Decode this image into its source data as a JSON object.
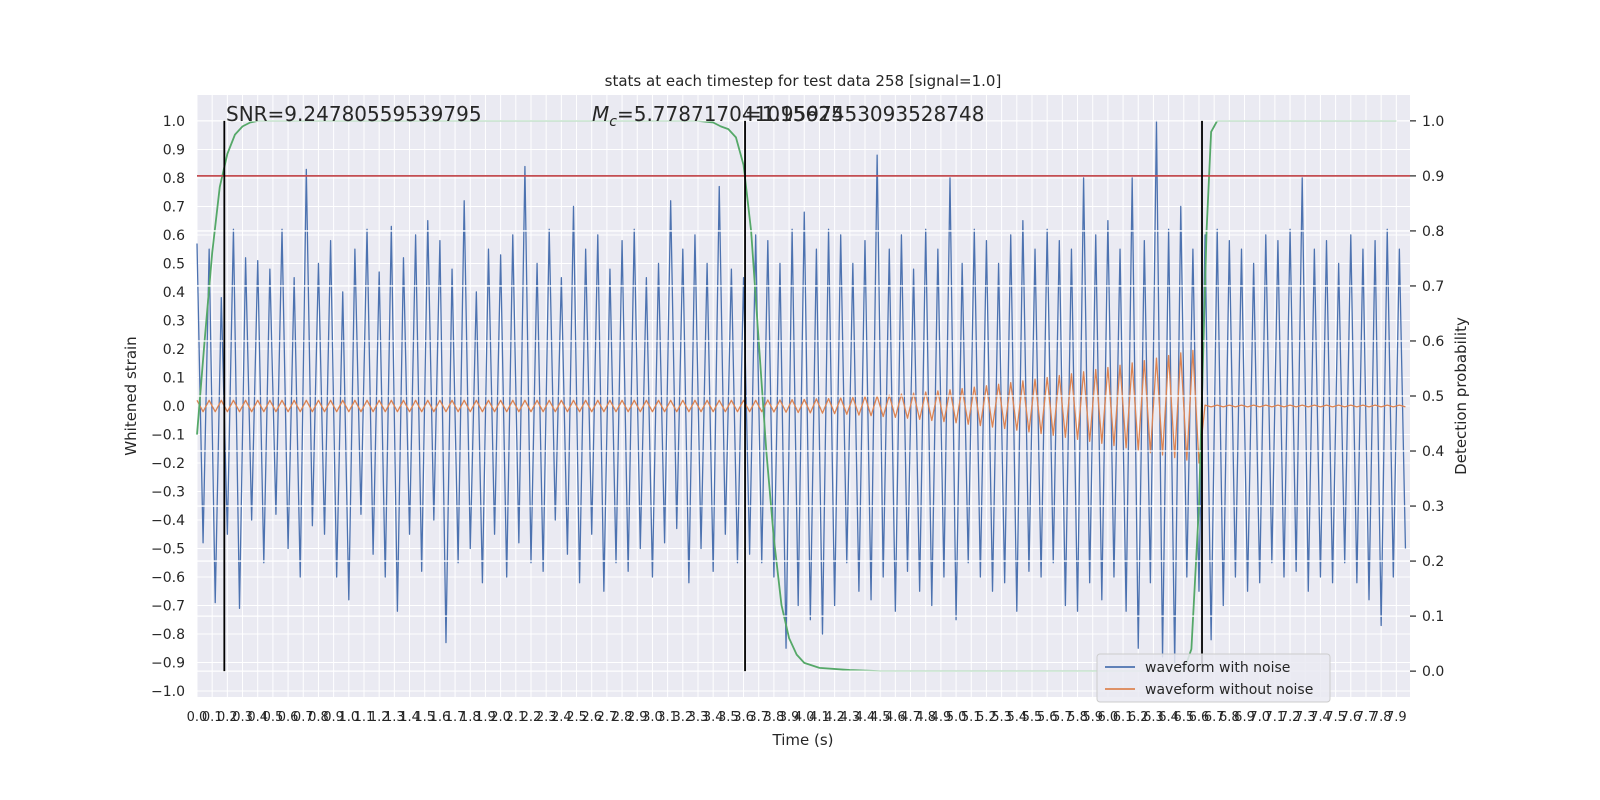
{
  "chart_data": {
    "type": "line",
    "title": "stats at each timestep for test data 258 [signal=1.0]",
    "x_label": "Time (s)",
    "y_label": "Whitened strain",
    "y2_label": "Detection probability",
    "grid": true,
    "legend": "lower right",
    "annotations": {
      "snr": "SNR=9.24780559539795",
      "mc_symbol": "M",
      "mc_subscript": "c",
      "mc_value": "=5.778717041015625",
      "second_value": "=1.9597453093528748"
    },
    "xlim": [
      0,
      7.99
    ],
    "ylim": [
      -1.021,
      1.091
    ],
    "y2lim": [
      -0.047,
      1.047
    ],
    "xticks": [
      {
        "value": 0,
        "label": "0.0"
      },
      {
        "value": 0.1,
        "label": "0.1"
      },
      {
        "value": 0.2,
        "label": "0.2"
      },
      {
        "value": 0.3,
        "label": "0.3"
      },
      {
        "value": 0.4,
        "label": "0.4"
      },
      {
        "value": 0.5,
        "label": "0.5"
      },
      {
        "value": 0.6,
        "label": "0.6"
      },
      {
        "value": 0.7,
        "label": "0.7"
      },
      {
        "value": 0.8,
        "label": "0.8"
      },
      {
        "value": 0.9,
        "label": "0.9"
      },
      {
        "value": 1,
        "label": "1.0"
      },
      {
        "value": 1.1,
        "label": "1.1"
      },
      {
        "value": 1.2,
        "label": "1.2"
      },
      {
        "value": 1.3,
        "label": "1.3"
      },
      {
        "value": 1.4,
        "label": "1.4"
      },
      {
        "value": 1.5,
        "label": "1.5"
      },
      {
        "value": 1.6,
        "label": "1.6"
      },
      {
        "value": 1.7,
        "label": "1.7"
      },
      {
        "value": 1.8,
        "label": "1.8"
      },
      {
        "value": 1.9,
        "label": "1.9"
      },
      {
        "value": 2,
        "label": "2.0"
      },
      {
        "value": 2.1,
        "label": "2.1"
      },
      {
        "value": 2.2,
        "label": "2.2"
      },
      {
        "value": 2.3,
        "label": "2.3"
      },
      {
        "value": 2.4,
        "label": "2.4"
      },
      {
        "value": 2.5,
        "label": "2.5"
      },
      {
        "value": 2.6,
        "label": "2.6"
      },
      {
        "value": 2.7,
        "label": "2.7"
      },
      {
        "value": 2.8,
        "label": "2.8"
      },
      {
        "value": 2.9,
        "label": "2.9"
      },
      {
        "value": 3,
        "label": "3.0"
      },
      {
        "value": 3.1,
        "label": "3.1"
      },
      {
        "value": 3.2,
        "label": "3.2"
      },
      {
        "value": 3.3,
        "label": "3.3"
      },
      {
        "value": 3.4,
        "label": "3.4"
      },
      {
        "value": 3.5,
        "label": "3.5"
      },
      {
        "value": 3.6,
        "label": "3.6"
      },
      {
        "value": 3.7,
        "label": "3.7"
      },
      {
        "value": 3.8,
        "label": "3.8"
      },
      {
        "value": 3.9,
        "label": "3.9"
      },
      {
        "value": 4,
        "label": "4.0"
      },
      {
        "value": 4.1,
        "label": "4.1"
      },
      {
        "value": 4.2,
        "label": "4.2"
      },
      {
        "value": 4.3,
        "label": "4.3"
      },
      {
        "value": 4.4,
        "label": "4.4"
      },
      {
        "value": 4.5,
        "label": "4.5"
      },
      {
        "value": 4.6,
        "label": "4.6"
      },
      {
        "value": 4.7,
        "label": "4.7"
      },
      {
        "value": 4.8,
        "label": "4.8"
      },
      {
        "value": 4.9,
        "label": "4.9"
      },
      {
        "value": 5,
        "label": "5.0"
      },
      {
        "value": 5.1,
        "label": "5.1"
      },
      {
        "value": 5.2,
        "label": "5.2"
      },
      {
        "value": 5.3,
        "label": "5.3"
      },
      {
        "value": 5.4,
        "label": "5.4"
      },
      {
        "value": 5.5,
        "label": "5.5"
      },
      {
        "value": 5.6,
        "label": "5.6"
      },
      {
        "value": 5.7,
        "label": "5.7"
      },
      {
        "value": 5.8,
        "label": "5.8"
      },
      {
        "value": 5.9,
        "label": "5.9"
      },
      {
        "value": 6,
        "label": "6.0"
      },
      {
        "value": 6.1,
        "label": "6.1"
      },
      {
        "value": 6.2,
        "label": "6.2"
      },
      {
        "value": 6.3,
        "label": "6.3"
      },
      {
        "value": 6.4,
        "label": "6.4"
      },
      {
        "value": 6.5,
        "label": "6.5"
      },
      {
        "value": 6.6,
        "label": "6.6"
      },
      {
        "value": 6.7,
        "label": "6.7"
      },
      {
        "value": 6.8,
        "label": "6.8"
      },
      {
        "value": 6.9,
        "label": "6.9"
      },
      {
        "value": 7,
        "label": "7.0"
      },
      {
        "value": 7.1,
        "label": "7.1"
      },
      {
        "value": 7.2,
        "label": "7.2"
      },
      {
        "value": 7.3,
        "label": "7.3"
      },
      {
        "value": 7.4,
        "label": "7.4"
      },
      {
        "value": 7.5,
        "label": "7.5"
      },
      {
        "value": 7.6,
        "label": "7.6"
      },
      {
        "value": 7.7,
        "label": "7.7"
      },
      {
        "value": 7.8,
        "label": "7.8"
      },
      {
        "value": 7.9,
        "label": "7.9"
      }
    ],
    "yticks": [
      {
        "value": -1,
        "label": "−1.0"
      },
      {
        "value": -0.9,
        "label": "−0.9"
      },
      {
        "value": -0.8,
        "label": "−0.8"
      },
      {
        "value": -0.7,
        "label": "−0.7"
      },
      {
        "value": -0.6,
        "label": "−0.6"
      },
      {
        "value": -0.5,
        "label": "−0.5"
      },
      {
        "value": -0.4,
        "label": "−0.4"
      },
      {
        "value": -0.3,
        "label": "−0.3"
      },
      {
        "value": -0.2,
        "label": "−0.2"
      },
      {
        "value": -0.1,
        "label": "−0.1"
      },
      {
        "value": 0,
        "label": "0.0"
      },
      {
        "value": 0.1,
        "label": "0.1"
      },
      {
        "value": 0.2,
        "label": "0.2"
      },
      {
        "value": 0.3,
        "label": "0.3"
      },
      {
        "value": 0.4,
        "label": "0.4"
      },
      {
        "value": 0.5,
        "label": "0.5"
      },
      {
        "value": 0.6,
        "label": "0.6"
      },
      {
        "value": 0.7,
        "label": "0.7"
      },
      {
        "value": 0.8,
        "label": "0.8"
      },
      {
        "value": 0.9,
        "label": "0.9"
      },
      {
        "value": 1,
        "label": "1.0"
      }
    ],
    "y2ticks": [
      {
        "value": 0,
        "label": "0.0"
      },
      {
        "value": 0.1,
        "label": "0.1"
      },
      {
        "value": 0.2,
        "label": "0.2"
      },
      {
        "value": 0.3,
        "label": "0.3"
      },
      {
        "value": 0.4,
        "label": "0.4"
      },
      {
        "value": 0.5,
        "label": "0.5"
      },
      {
        "value": 0.6,
        "label": "0.6"
      },
      {
        "value": 0.7,
        "label": "0.7"
      },
      {
        "value": 0.8,
        "label": "0.8"
      },
      {
        "value": 0.9,
        "label": "0.9"
      },
      {
        "value": 1,
        "label": "1.0"
      }
    ],
    "x": [
      0,
      0.04,
      0.08,
      0.12,
      0.16,
      0.2,
      0.24,
      0.28,
      0.32,
      0.36,
      0.4,
      0.44,
      0.48,
      0.52,
      0.56,
      0.6,
      0.64,
      0.68,
      0.72,
      0.76,
      0.8,
      0.84,
      0.88,
      0.92,
      0.96,
      1,
      1.04,
      1.08,
      1.12,
      1.16,
      1.2,
      1.24,
      1.28,
      1.32,
      1.36,
      1.4,
      1.44,
      1.48,
      1.52,
      1.56,
      1.6,
      1.64,
      1.68,
      1.72,
      1.76,
      1.8,
      1.84,
      1.88,
      1.92,
      1.96,
      2,
      2.04,
      2.08,
      2.12,
      2.16,
      2.2,
      2.24,
      2.28,
      2.32,
      2.36,
      2.4,
      2.44,
      2.48,
      2.52,
      2.56,
      2.6,
      2.64,
      2.68,
      2.72,
      2.76,
      2.8,
      2.84,
      2.88,
      2.92,
      2.96,
      3,
      3.04,
      3.08,
      3.12,
      3.16,
      3.2,
      3.24,
      3.28,
      3.32,
      3.36,
      3.4,
      3.44,
      3.48,
      3.52,
      3.56,
      3.6,
      3.64,
      3.68,
      3.72,
      3.76,
      3.8,
      3.84,
      3.88,
      3.92,
      3.96,
      4,
      4.04,
      4.08,
      4.12,
      4.16,
      4.2,
      4.24,
      4.28,
      4.32,
      4.36,
      4.4,
      4.44,
      4.48,
      4.52,
      4.56,
      4.6,
      4.64,
      4.68,
      4.72,
      4.76,
      4.8,
      4.84,
      4.88,
      4.92,
      4.96,
      5,
      5.04,
      5.08,
      5.12,
      5.16,
      5.2,
      5.24,
      5.28,
      5.32,
      5.36,
      5.4,
      5.44,
      5.48,
      5.52,
      5.56,
      5.6,
      5.64,
      5.68,
      5.72,
      5.76,
      5.8,
      5.84,
      5.88,
      5.92,
      5.96,
      6,
      6.04,
      6.08,
      6.12,
      6.16,
      6.2,
      6.24,
      6.28,
      6.32,
      6.36,
      6.4,
      6.44,
      6.48,
      6.52,
      6.56,
      6.6,
      6.64,
      6.68,
      6.72,
      6.76,
      6.8,
      6.84,
      6.88,
      6.92,
      6.96,
      7,
      7.04,
      7.08,
      7.12,
      7.16,
      7.2,
      7.24,
      7.28,
      7.32,
      7.36,
      7.4,
      7.44,
      7.48,
      7.52,
      7.56,
      7.6,
      7.64,
      7.68,
      7.72,
      7.76,
      7.8,
      7.84,
      7.88,
      7.92,
      7.96
    ],
    "series": [
      {
        "name": "waveform with noise",
        "color": "#4c72b0",
        "values": [
          0.57,
          -0.48,
          0.55,
          -0.69,
          0.38,
          -0.45,
          0.62,
          -0.71,
          0.52,
          -0.4,
          0.51,
          -0.55,
          0.48,
          -0.38,
          0.62,
          -0.5,
          0.45,
          -0.6,
          0.83,
          -0.42,
          0.5,
          -0.45,
          0.58,
          -0.6,
          0.4,
          -0.68,
          0.55,
          -0.38,
          0.62,
          -0.52,
          0.47,
          -0.6,
          0.63,
          -0.72,
          0.52,
          -0.45,
          0.6,
          -0.58,
          0.65,
          -0.4,
          0.58,
          -0.83,
          0.48,
          -0.55,
          0.72,
          -0.5,
          0.4,
          -0.62,
          0.55,
          -0.45,
          0.53,
          -0.6,
          0.6,
          -0.48,
          0.84,
          -0.55,
          0.5,
          -0.58,
          0.62,
          -0.4,
          0.45,
          -0.52,
          0.7,
          -0.62,
          0.55,
          -0.45,
          0.6,
          -0.65,
          0.48,
          -0.55,
          0.58,
          -0.58,
          0.62,
          -0.5,
          0.45,
          -0.6,
          0.5,
          -0.48,
          0.72,
          -0.43,
          0.55,
          -0.62,
          0.6,
          -0.5,
          0.5,
          -0.58,
          0.77,
          -0.45,
          0.48,
          -0.55,
          0.45,
          -0.52,
          0.6,
          -0.55,
          0.58,
          -0.6,
          0.5,
          -0.85,
          0.62,
          -0.7,
          0.68,
          -0.75,
          0.55,
          -0.8,
          0.62,
          -0.7,
          0.6,
          -0.55,
          0.5,
          -0.65,
          0.58,
          -0.68,
          0.88,
          -0.6,
          0.55,
          -0.72,
          0.6,
          -0.58,
          0.48,
          -0.65,
          0.62,
          -0.7,
          0.55,
          -0.6,
          0.8,
          -0.75,
          0.5,
          -0.55,
          0.62,
          -0.6,
          0.58,
          -0.65,
          0.5,
          -0.62,
          0.6,
          -0.72,
          0.65,
          -0.58,
          0.55,
          -0.6,
          0.62,
          -0.55,
          0.58,
          -0.7,
          0.55,
          -0.72,
          0.8,
          -0.62,
          0.6,
          -0.68,
          0.65,
          -0.6,
          0.55,
          -0.72,
          0.8,
          -0.85,
          0.58,
          -0.62,
          1.0,
          -0.88,
          0.62,
          -0.9,
          0.7,
          -0.6,
          0.55,
          -0.65,
          0.6,
          -0.82,
          0.62,
          -0.7,
          0.58,
          -0.6,
          0.55,
          -0.65,
          0.5,
          -0.62,
          0.6,
          -0.55,
          0.58,
          -0.6,
          0.62,
          -0.58,
          0.8,
          -0.65,
          0.55,
          -0.6,
          0.58,
          -0.62,
          0.5,
          -0.55,
          0.6,
          -0.62,
          0.55,
          -0.68,
          0.58,
          -0.77,
          0.62,
          -0.6,
          0.55,
          -0.5
        ]
      },
      {
        "name": "waveform without noise",
        "color": "#dd8452",
        "values": [
          0.02,
          -0.02,
          0.02,
          -0.02,
          0.02,
          -0.02,
          0.02,
          -0.02,
          0.02,
          -0.02,
          0.02,
          -0.02,
          0.02,
          -0.02,
          0.02,
          -0.02,
          0.02,
          -0.02,
          0.02,
          -0.02,
          0.02,
          -0.02,
          0.02,
          -0.02,
          0.02,
          -0.02,
          0.02,
          -0.02,
          0.02,
          -0.02,
          0.02,
          -0.02,
          0.02,
          -0.02,
          0.02,
          -0.02,
          0.02,
          -0.02,
          0.02,
          -0.02,
          0.02,
          -0.02,
          0.02,
          -0.02,
          0.02,
          -0.02,
          0.02,
          -0.02,
          0.02,
          -0.02,
          0.02,
          -0.02,
          0.02,
          -0.02,
          0.02,
          -0.02,
          0.02,
          -0.02,
          0.02,
          -0.02,
          0.02,
          -0.02,
          0.02,
          -0.02,
          0.02,
          -0.02,
          0.02,
          -0.02,
          0.02,
          -0.02,
          0.02,
          -0.02,
          0.02,
          -0.02,
          0.02,
          -0.02,
          0.02,
          -0.02,
          0.02,
          -0.02,
          0.02,
          -0.02,
          0.02,
          -0.02,
          0.02,
          -0.02,
          0.02,
          -0.02,
          0.02,
          -0.02,
          0.02,
          -0.02,
          0.02,
          -0.02,
          0.021,
          -0.021,
          0.021,
          -0.022,
          0.022,
          -0.023,
          0.023,
          -0.024,
          0.025,
          -0.025,
          0.026,
          -0.027,
          0.028,
          -0.029,
          0.03,
          -0.032,
          0.033,
          -0.034,
          0.035,
          -0.037,
          0.038,
          -0.04,
          0.042,
          -0.043,
          0.045,
          -0.047,
          0.049,
          -0.051,
          0.053,
          -0.055,
          0.057,
          -0.059,
          0.061,
          -0.064,
          0.066,
          -0.069,
          0.071,
          -0.074,
          0.076,
          -0.079,
          0.082,
          -0.085,
          0.088,
          -0.091,
          0.094,
          -0.097,
          0.1,
          -0.103,
          0.107,
          -0.11,
          0.113,
          -0.117,
          0.12,
          -0.124,
          0.128,
          -0.131,
          0.135,
          -0.139,
          0.143,
          -0.147,
          0.151,
          -0.155,
          0.159,
          -0.164,
          0.168,
          -0.172,
          0.177,
          -0.181,
          0.186,
          -0.19,
          0.195,
          -0.2,
          0.003,
          -0.003,
          0.003,
          -0.003,
          0.003,
          -0.003,
          0.003,
          -0.003,
          0.003,
          -0.003,
          0.003,
          -0.003,
          0.003,
          -0.003,
          0.003,
          -0.003,
          0.003,
          -0.003,
          0.003,
          -0.003,
          0.003,
          -0.003,
          0.003,
          -0.003,
          0.003,
          -0.003,
          0.003,
          -0.003,
          0.003,
          -0.003,
          0.003,
          -0.003,
          0.003,
          -0.003
        ]
      },
      {
        "axis": "y2",
        "color": "#55a868",
        "x": [
          0,
          0.05,
          0.1,
          0.15,
          0.2,
          0.25,
          0.3,
          0.35,
          0.4,
          0.5,
          3.3,
          3.4,
          3.45,
          3.5,
          3.55,
          3.6,
          3.65,
          3.7,
          3.75,
          3.8,
          3.85,
          3.9,
          3.95,
          4.0,
          4.1,
          4.3,
          4.5,
          6.5,
          6.55,
          6.6,
          6.62,
          6.65,
          6.68,
          6.72,
          6.8,
          7.9
        ],
        "values": [
          0.43,
          0.6,
          0.76,
          0.88,
          0.94,
          0.975,
          0.99,
          0.997,
          1.0,
          1.0,
          1.0,
          0.997,
          0.99,
          0.985,
          0.97,
          0.92,
          0.8,
          0.6,
          0.4,
          0.24,
          0.12,
          0.06,
          0.03,
          0.015,
          0.006,
          0.002,
          0.0,
          0.0,
          0.04,
          0.3,
          0.5,
          0.8,
          0.98,
          1.0,
          1.0,
          1.0
        ]
      }
    ],
    "hline": {
      "axis": "y2",
      "value": 0.9,
      "color": "#c44e52"
    },
    "vlines": {
      "axis": "y2",
      "x": [
        0.18,
        3.61,
        6.62
      ],
      "ymin": 0,
      "ymax": 1,
      "color": "#000000"
    }
  }
}
